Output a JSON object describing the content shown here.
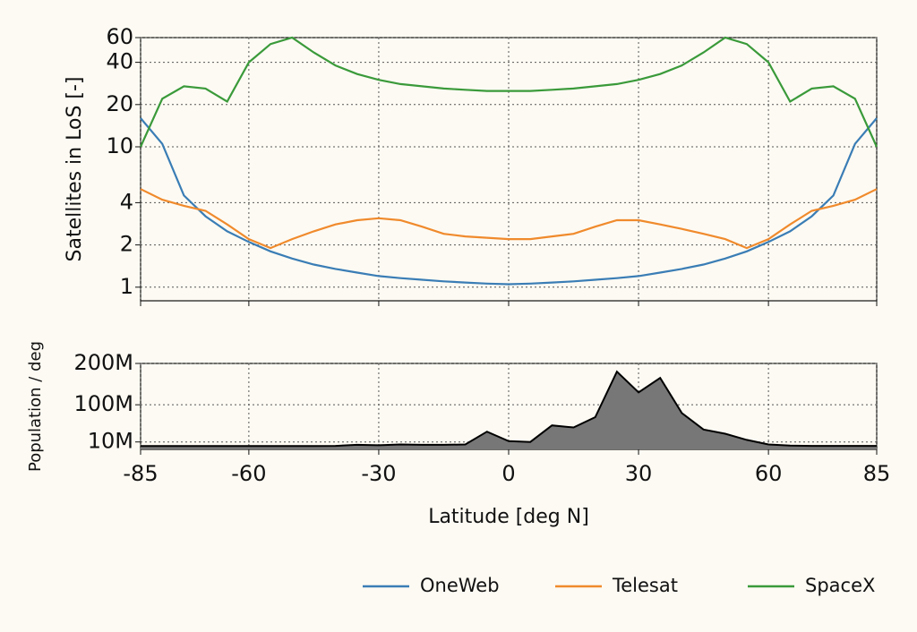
{
  "chart_data": [
    {
      "type": "line",
      "ylabel": "Satellites in LoS [-]",
      "log_y": true,
      "grid": true,
      "legend": "lower right",
      "x": [
        -85,
        -80,
        -75,
        -70,
        -65,
        -60,
        -55,
        -50,
        -45,
        -40,
        -35,
        -30,
        -25,
        -20,
        -15,
        -10,
        -5,
        0,
        5,
        10,
        15,
        20,
        25,
        30,
        35,
        40,
        45,
        50,
        55,
        60,
        65,
        70,
        75,
        80,
        85
      ],
      "series": [
        {
          "name": "OneWeb",
          "color": "#3a7db5",
          "values": [
            16,
            10.5,
            4.5,
            3.2,
            2.5,
            2.1,
            1.8,
            1.6,
            1.45,
            1.35,
            1.27,
            1.2,
            1.16,
            1.13,
            1.1,
            1.08,
            1.06,
            1.05,
            1.06,
            1.08,
            1.1,
            1.13,
            1.16,
            1.2,
            1.27,
            1.35,
            1.45,
            1.6,
            1.8,
            2.1,
            2.5,
            3.2,
            4.5,
            10.5,
            16
          ]
        },
        {
          "name": "Telesat",
          "color": "#f08a2c",
          "values": [
            5,
            4.2,
            3.8,
            3.5,
            2.8,
            2.2,
            1.9,
            2.2,
            2.5,
            2.8,
            3.0,
            3.1,
            3.0,
            2.7,
            2.4,
            2.3,
            2.25,
            2.2,
            2.2,
            2.3,
            2.4,
            2.7,
            3.0,
            3.0,
            2.8,
            2.6,
            2.4,
            2.2,
            1.9,
            2.2,
            2.8,
            3.5,
            3.8,
            4.2,
            5
          ]
        },
        {
          "name": "SpaceX",
          "color": "#3a9a3a",
          "values": [
            10,
            22,
            27,
            26,
            21,
            40,
            54,
            60,
            47,
            38,
            33,
            30,
            28,
            27,
            26,
            25.5,
            25,
            25,
            25,
            25.5,
            26,
            27,
            28,
            30,
            33,
            38,
            47,
            60,
            54,
            40,
            21,
            26,
            27,
            22,
            10
          ]
        }
      ],
      "xlim": [
        -85,
        85
      ],
      "ylim": [
        0.8,
        60
      ],
      "yticks": [
        1,
        2,
        4,
        10,
        20,
        40,
        60
      ]
    },
    {
      "type": "area",
      "ylabel": "Population / deg",
      "xlabel": "Latitude [deg N]",
      "grid": true,
      "color": "#777777",
      "x": [
        -85,
        -80,
        -75,
        -70,
        -65,
        -60,
        -55,
        -50,
        -45,
        -40,
        -35,
        -30,
        -25,
        -20,
        -15,
        -10,
        -5,
        0,
        5,
        10,
        15,
        20,
        25,
        30,
        35,
        40,
        45,
        50,
        55,
        60,
        65,
        70,
        75,
        80,
        85
      ],
      "values": [
        0,
        0,
        0,
        0,
        0,
        0,
        0,
        0,
        0,
        500000,
        3000000,
        2000000,
        4000000,
        3000000,
        3000000,
        4000000,
        35000000,
        12000000,
        10000000,
        50000000,
        45000000,
        70000000,
        180000000,
        130000000,
        165000000,
        80000000,
        40000000,
        30000000,
        15000000,
        4000000,
        1000000,
        500000,
        500000,
        500000,
        500000
      ],
      "xlim": [
        -85,
        85
      ],
      "ylim": [
        -8000000,
        200000000
      ],
      "yticks": [
        {
          "value": 10000000,
          "label": "10M"
        },
        {
          "value": 100000000,
          "label": "100M"
        },
        {
          "value": 200000000,
          "label": "200M"
        }
      ],
      "xticks": [
        -85,
        -60,
        -30,
        0,
        30,
        60,
        85
      ]
    }
  ]
}
